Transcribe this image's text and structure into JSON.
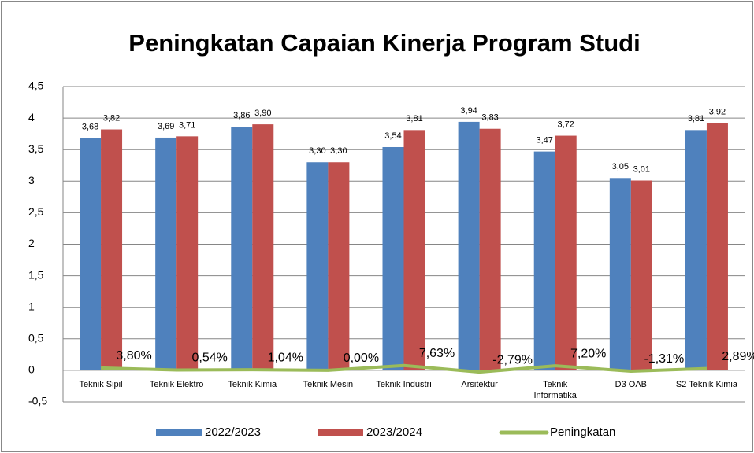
{
  "chart_data": {
    "type": "bar",
    "title": "Peningkatan Capaian Kinerja Program Studi",
    "categories": [
      "Teknik Sipil",
      "Teknik Elektro",
      "Teknik Kimia",
      "Teknik Mesin",
      "Teknik Industri",
      "Arsitektur",
      "Teknik Informatika",
      "D3 OAB",
      "S2 Teknik Kimia"
    ],
    "series": [
      {
        "name": "2022/2023",
        "color": "#4f81bd",
        "type": "bar",
        "values": [
          3.68,
          3.69,
          3.86,
          3.3,
          3.54,
          3.94,
          3.47,
          3.05,
          3.81
        ],
        "value_labels": [
          "3,68",
          "3,69",
          "3,86",
          "3,30",
          "3,54",
          "3,94",
          "3,47",
          "3,05",
          "3,81"
        ]
      },
      {
        "name": "2023/2024",
        "color": "#c0504d",
        "type": "bar",
        "values": [
          3.82,
          3.71,
          3.9,
          3.3,
          3.81,
          3.83,
          3.72,
          3.01,
          3.92
        ],
        "value_labels": [
          "3,82",
          "3,71",
          "3,90",
          "3,30",
          "3,81",
          "3,83",
          "3,72",
          "3,01",
          "3,92"
        ]
      },
      {
        "name": "Peningkatan",
        "color": "#9bbb59",
        "type": "line",
        "values": [
          0.038,
          0.0054,
          0.0104,
          0,
          0.0763,
          -0.0279,
          0.072,
          -0.0131,
          0.0289
        ],
        "value_labels": [
          "3,80%",
          "0,54%",
          "1,04%",
          "0,00%",
          "7,63%",
          "-2,79%",
          "7,20%",
          "-1,31%",
          "2,89%"
        ]
      }
    ],
    "ylim": [
      -0.5,
      4.5
    ],
    "yticks": [
      {
        "value": -0.5,
        "label": "-0,5"
      },
      0,
      {
        "value": 0.5,
        "label": "0,5"
      },
      1,
      {
        "value": 1.5,
        "label": "1,5"
      },
      2,
      {
        "value": 2.5,
        "label": "2,5"
      },
      3,
      {
        "value": 3.5,
        "label": "3,5"
      },
      4,
      {
        "value": 4.5,
        "label": "4,5"
      }
    ],
    "grid": true,
    "legend": "bottom"
  }
}
